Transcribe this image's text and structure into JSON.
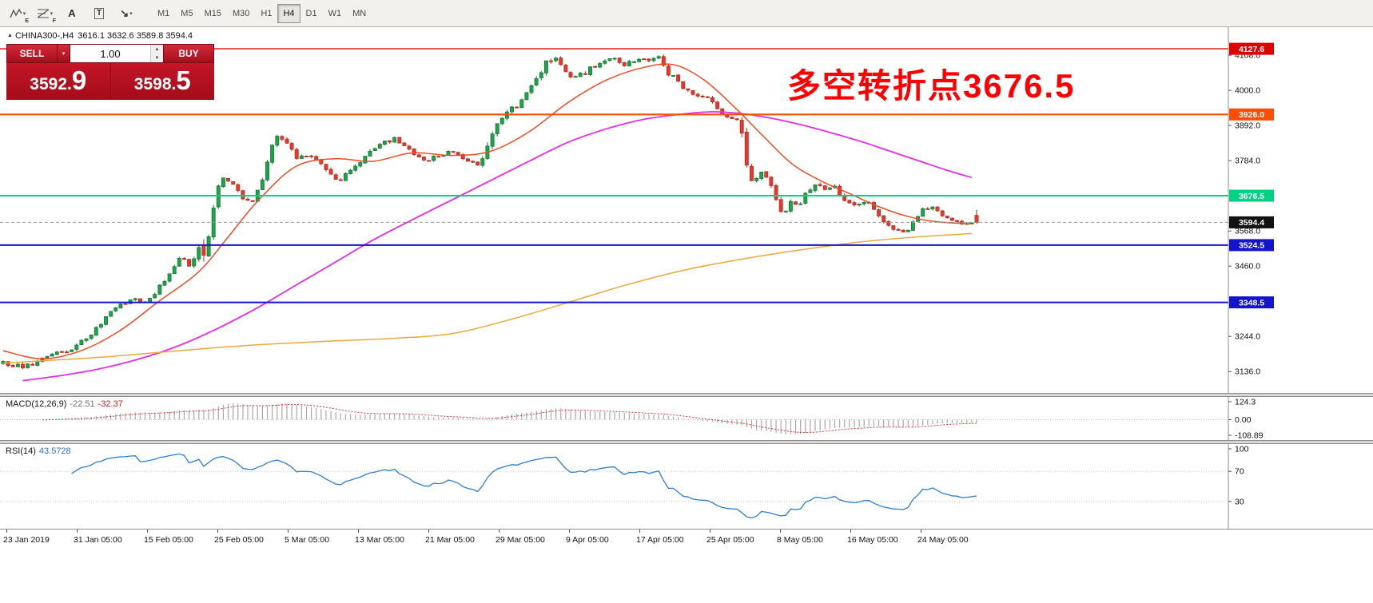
{
  "toolbar": {
    "tools": [
      {
        "button": "elliott-waves-button",
        "icon": "elliott-waves-icon",
        "type": "zigzag",
        "sub": "E",
        "caret": true
      },
      {
        "button": "fibonacci-button",
        "icon": "fibonacci-icon",
        "type": "fib",
        "sub": "F",
        "caret": true
      },
      {
        "button": "text-label-button",
        "icon": "text-label-icon",
        "glyph": "A"
      },
      {
        "button": "text-box-button",
        "icon": "text-box-icon",
        "glyph": "T",
        "boxed": true
      },
      {
        "button": "arrows-button",
        "icon": "arrows-icon",
        "glyph": "↘",
        "caret": true
      }
    ],
    "timeframes": [
      "M1",
      "M5",
      "M15",
      "M30",
      "H1",
      "H4",
      "D1",
      "W1",
      "MN"
    ],
    "active_timeframe": "H4"
  },
  "chart": {
    "collapse_arrow": "▲",
    "symbol_period": "CHINA300-,H4",
    "ohlc": "3616.1 3632.6 3589.8 3594.4"
  },
  "trade_panel": {
    "sell_label": "SELL",
    "buy_label": "BUY",
    "lot_value": "1.00",
    "sell_price_main": "3592.",
    "sell_price_big": "9",
    "buy_price_main": "3598.",
    "buy_price_big": "5"
  },
  "annotation": {
    "text": "多空转折点3676.5",
    "color": "#ff0000"
  },
  "price_axis": {
    "ticks": [
      "4108.0",
      "4000.0",
      "3892.0",
      "3784.0",
      "3568.0",
      "3460.0",
      "3244.0",
      "3136.0"
    ],
    "tick_values": [
      4108,
      4000,
      3892,
      3784,
      3568,
      3460,
      3244,
      3136
    ]
  },
  "macd": {
    "label": "MACD(12,26,9)",
    "value1": "-22.51",
    "value2": "-32.37",
    "axis_labels": [
      "124.3",
      "0.00",
      "-108.89"
    ],
    "axis_values": [
      124.3,
      0,
      -108.89
    ]
  },
  "rsi": {
    "label": "RSI(14)",
    "value": "43.5728",
    "axis_labels": [
      "100",
      "70",
      "30"
    ],
    "axis_values": [
      100,
      70,
      30
    ]
  },
  "time_axis": {
    "labels": [
      "23 Jan 2019",
      "31 Jan 05:00",
      "15 Feb 05:00",
      "25 Feb 05:00",
      "5 Mar 05:00",
      "13 Mar 05:00",
      "21 Mar 05:00",
      "29 Mar 05:00",
      "9 Apr 05:00",
      "17 Apr 05:00",
      "25 Apr 05:00",
      "8 May 05:00",
      "16 May 05:00",
      "24 May 05:00"
    ]
  },
  "chart_data": {
    "type": "candlestick",
    "symbol": "CHINA300-",
    "period": "H4",
    "seed": 20190528,
    "candles_count": 200,
    "price_min": 3085,
    "price_max": 4150,
    "last_candle": {
      "open": 3616.1,
      "high": 3632.6,
      "low": 3589.8,
      "close": 3594.4
    },
    "price_path": [
      [
        0.0,
        3165,
        12
      ],
      [
        0.02,
        3150,
        10
      ],
      [
        0.045,
        3178,
        9
      ],
      [
        0.07,
        3208,
        10
      ],
      [
        0.09,
        3252,
        11
      ],
      [
        0.105,
        3300,
        12
      ],
      [
        0.12,
        3340,
        10
      ],
      [
        0.135,
        3362,
        9
      ],
      [
        0.147,
        3342,
        9
      ],
      [
        0.16,
        3395,
        10
      ],
      [
        0.172,
        3440,
        12
      ],
      [
        0.183,
        3488,
        13
      ],
      [
        0.193,
        3455,
        11
      ],
      [
        0.2,
        3520,
        16
      ],
      [
        0.205,
        3480,
        55
      ],
      [
        0.212,
        3560,
        30
      ],
      [
        0.22,
        3690,
        28
      ],
      [
        0.228,
        3735,
        16
      ],
      [
        0.243,
        3678,
        12
      ],
      [
        0.258,
        3662,
        11
      ],
      [
        0.27,
        3762,
        18
      ],
      [
        0.28,
        3858,
        16
      ],
      [
        0.29,
        3838,
        12
      ],
      [
        0.302,
        3792,
        12
      ],
      [
        0.315,
        3800,
        10
      ],
      [
        0.33,
        3758,
        11
      ],
      [
        0.345,
        3726,
        13
      ],
      [
        0.36,
        3762,
        11
      ],
      [
        0.375,
        3804,
        12
      ],
      [
        0.39,
        3838,
        10
      ],
      [
        0.402,
        3850,
        8
      ],
      [
        0.413,
        3828,
        9
      ],
      [
        0.424,
        3795,
        10
      ],
      [
        0.435,
        3782,
        10
      ],
      [
        0.447,
        3800,
        10
      ],
      [
        0.46,
        3812,
        9
      ],
      [
        0.475,
        3790,
        9
      ],
      [
        0.488,
        3768,
        11
      ],
      [
        0.497,
        3830,
        22
      ],
      [
        0.506,
        3902,
        16
      ],
      [
        0.516,
        3930,
        13
      ],
      [
        0.53,
        3958,
        13
      ],
      [
        0.545,
        4015,
        15
      ],
      [
        0.556,
        4078,
        16
      ],
      [
        0.565,
        4108,
        16
      ],
      [
        0.575,
        4062,
        16
      ],
      [
        0.585,
        4030,
        14
      ],
      [
        0.6,
        4058,
        13
      ],
      [
        0.612,
        4088,
        11
      ],
      [
        0.625,
        4098,
        10
      ],
      [
        0.636,
        4078,
        11
      ],
      [
        0.646,
        4088,
        10
      ],
      [
        0.656,
        4098,
        10
      ],
      [
        0.666,
        4088,
        12
      ],
      [
        0.674,
        4108,
        14
      ],
      [
        0.682,
        4058,
        15
      ],
      [
        0.692,
        4028,
        13
      ],
      [
        0.702,
        3998,
        12
      ],
      [
        0.712,
        3978,
        11
      ],
      [
        0.722,
        3988,
        10
      ],
      [
        0.73,
        3955,
        11
      ],
      [
        0.738,
        3922,
        12
      ],
      [
        0.746,
        3910,
        9
      ],
      [
        0.753,
        3916,
        8
      ],
      [
        0.759,
        3875,
        26
      ],
      [
        0.765,
        3742,
        30
      ],
      [
        0.772,
        3730,
        16
      ],
      [
        0.78,
        3752,
        13
      ],
      [
        0.788,
        3718,
        13
      ],
      [
        0.795,
        3650,
        22
      ],
      [
        0.801,
        3622,
        20
      ],
      [
        0.808,
        3662,
        15
      ],
      [
        0.816,
        3640,
        12
      ],
      [
        0.825,
        3680,
        13
      ],
      [
        0.834,
        3712,
        13
      ],
      [
        0.844,
        3692,
        10
      ],
      [
        0.854,
        3702,
        10
      ],
      [
        0.864,
        3662,
        11
      ],
      [
        0.874,
        3640,
        11
      ],
      [
        0.884,
        3660,
        10
      ],
      [
        0.894,
        3642,
        10
      ],
      [
        0.904,
        3602,
        12
      ],
      [
        0.914,
        3572,
        11
      ],
      [
        0.924,
        3558,
        11
      ],
      [
        0.934,
        3590,
        12
      ],
      [
        0.944,
        3630,
        11
      ],
      [
        0.954,
        3642,
        9
      ],
      [
        0.964,
        3622,
        9
      ],
      [
        0.974,
        3602,
        9
      ],
      [
        0.984,
        3590,
        9
      ],
      [
        1.0,
        3596,
        9
      ]
    ],
    "moving_averages": [
      {
        "name": "ma-fast-red-line",
        "color": "#f04a22",
        "width": 1.5,
        "points": [
          [
            0,
            3200
          ],
          [
            0.04,
            3175
          ],
          [
            0.08,
            3200
          ],
          [
            0.12,
            3262
          ],
          [
            0.16,
            3352
          ],
          [
            0.2,
            3440
          ],
          [
            0.23,
            3545
          ],
          [
            0.26,
            3655
          ],
          [
            0.3,
            3765
          ],
          [
            0.34,
            3790
          ],
          [
            0.38,
            3782
          ],
          [
            0.42,
            3808
          ],
          [
            0.46,
            3800
          ],
          [
            0.5,
            3812
          ],
          [
            0.54,
            3872
          ],
          [
            0.58,
            3962
          ],
          [
            0.62,
            4032
          ],
          [
            0.66,
            4072
          ],
          [
            0.69,
            4078
          ],
          [
            0.72,
            4032
          ],
          [
            0.75,
            3952
          ],
          [
            0.78,
            3862
          ],
          [
            0.81,
            3775
          ],
          [
            0.84,
            3722
          ],
          [
            0.87,
            3682
          ],
          [
            0.9,
            3642
          ],
          [
            0.93,
            3612
          ],
          [
            0.96,
            3596
          ],
          [
            0.995,
            3590
          ]
        ]
      },
      {
        "name": "ma-slow-magenta-line",
        "color": "#e32ce3",
        "width": 1.8,
        "points": [
          [
            0.02,
            3108
          ],
          [
            0.06,
            3124
          ],
          [
            0.1,
            3145
          ],
          [
            0.14,
            3175
          ],
          [
            0.18,
            3215
          ],
          [
            0.22,
            3268
          ],
          [
            0.26,
            3330
          ],
          [
            0.3,
            3400
          ],
          [
            0.34,
            3470
          ],
          [
            0.38,
            3540
          ],
          [
            0.42,
            3602
          ],
          [
            0.46,
            3662
          ],
          [
            0.5,
            3722
          ],
          [
            0.54,
            3782
          ],
          [
            0.58,
            3840
          ],
          [
            0.62,
            3882
          ],
          [
            0.66,
            3912
          ],
          [
            0.7,
            3928
          ],
          [
            0.73,
            3934
          ],
          [
            0.76,
            3928
          ],
          [
            0.79,
            3914
          ],
          [
            0.82,
            3894
          ],
          [
            0.85,
            3870
          ],
          [
            0.88,
            3844
          ],
          [
            0.91,
            3814
          ],
          [
            0.94,
            3784
          ],
          [
            0.97,
            3754
          ],
          [
            0.995,
            3732
          ]
        ]
      },
      {
        "name": "ma-long-gold-line",
        "color": "#eaa93c",
        "width": 1.5,
        "points": [
          [
            0,
            3162
          ],
          [
            0.1,
            3180
          ],
          [
            0.18,
            3200
          ],
          [
            0.26,
            3218
          ],
          [
            0.34,
            3230
          ],
          [
            0.4,
            3238
          ],
          [
            0.46,
            3252
          ],
          [
            0.52,
            3295
          ],
          [
            0.58,
            3348
          ],
          [
            0.64,
            3402
          ],
          [
            0.7,
            3448
          ],
          [
            0.76,
            3482
          ],
          [
            0.82,
            3510
          ],
          [
            0.88,
            3534
          ],
          [
            0.94,
            3550
          ],
          [
            0.995,
            3560
          ]
        ]
      }
    ],
    "levels": [
      {
        "value": 4127.6,
        "label": "4127.6",
        "color": "#dd0000",
        "width": 1.4,
        "style": "solid"
      },
      {
        "value": 3926.0,
        "label": "3926.0",
        "color": "#ff4d00",
        "width": 2.2,
        "style": "solid"
      },
      {
        "value": 3676.5,
        "label": "3676.5",
        "color": "#00d284",
        "width": 2.0,
        "style": "solid"
      },
      {
        "value": 3594.4,
        "label": "3594.4",
        "color": "#999999",
        "width": 1.0,
        "style": "dash",
        "badge": "#111111"
      },
      {
        "value": 3524.5,
        "label": "3524.5",
        "color": "#1414cc",
        "width": 2.0,
        "style": "solid"
      },
      {
        "value": 3348.5,
        "label": "3348.5",
        "color": "#1414cc",
        "width": 2.0,
        "style": "solid"
      }
    ],
    "colors": {
      "bull": "#1fa348",
      "bull_edge": "#157334",
      "bear": "#e23b2e",
      "bear_edge": "#b2261c",
      "macd_hist": "#a8a8a8",
      "macd_signal": "#e03333",
      "rsi": "#2a7fd0"
    }
  }
}
